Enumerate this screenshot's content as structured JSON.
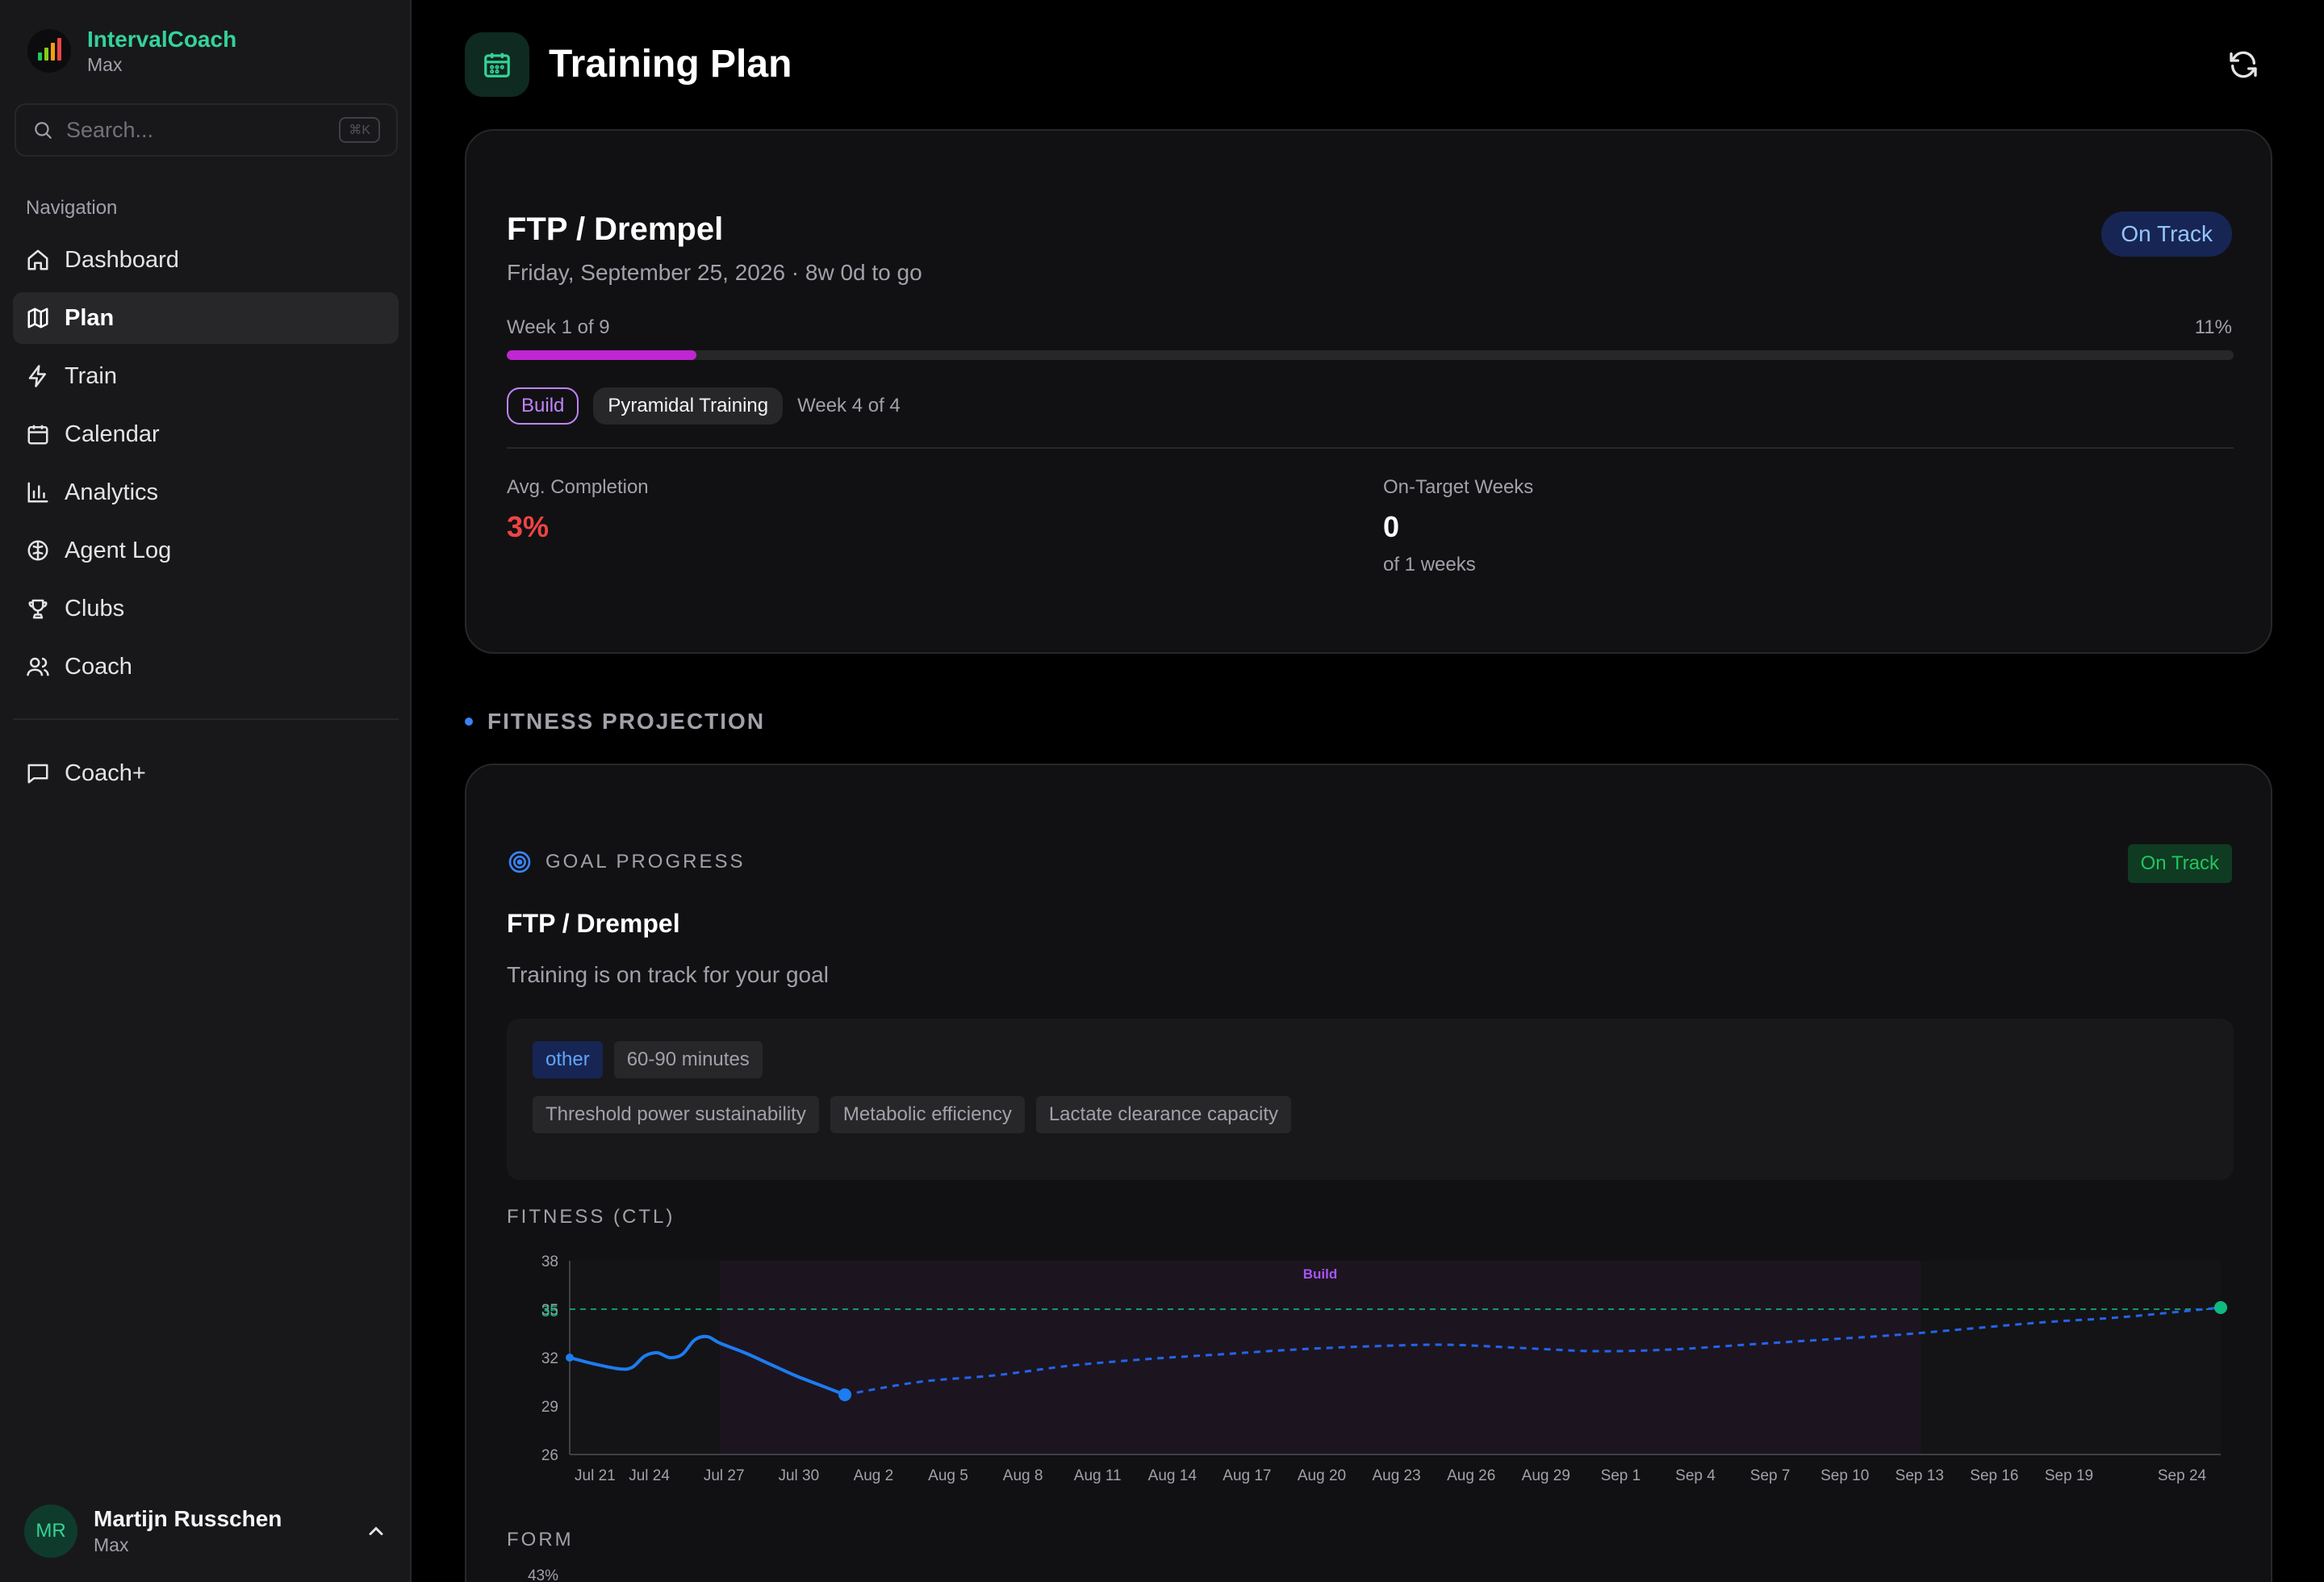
{
  "app": {
    "name": "IntervalCoach",
    "tier": "Max"
  },
  "search": {
    "placeholder": "Search...",
    "shortcut": "⌘K"
  },
  "sidebar": {
    "nav_title": "Navigation",
    "items": [
      {
        "label": "Dashboard",
        "icon": "home-icon"
      },
      {
        "label": "Plan",
        "icon": "map-icon",
        "active": true
      },
      {
        "label": "Train",
        "icon": "zap-icon"
      },
      {
        "label": "Calendar",
        "icon": "calendar-icon"
      },
      {
        "label": "Analytics",
        "icon": "bar-chart-icon"
      },
      {
        "label": "Agent Log",
        "icon": "brain-icon"
      },
      {
        "label": "Clubs",
        "icon": "trophy-icon"
      },
      {
        "label": "Coach",
        "icon": "users-icon"
      }
    ],
    "coach_plus": "Coach+"
  },
  "user": {
    "initials": "MR",
    "name": "Martijn Russchen",
    "tier": "Max"
  },
  "header": {
    "title": "Training Plan"
  },
  "goal": {
    "title": "FTP / Drempel",
    "date": "Friday, September 25, 2026 · 8w 0d to go",
    "status": "On Track",
    "week_label": "Week 1 of 9",
    "percent_label": "11%",
    "progress": 0.11,
    "phase": "Build",
    "block": "Pyramidal Training",
    "block_week": "Week 4 of 4",
    "avg_completion_label": "Avg. Completion",
    "avg_completion": "3%",
    "on_target_label": "On-Target Weeks",
    "on_target": "0",
    "on_target_sub": "of 1 weeks"
  },
  "projection": {
    "section_title": "FITNESS PROJECTION",
    "header": "GOAL PROGRESS",
    "status": "On Track",
    "title": "FTP / Drempel",
    "description": "Training is on track for your goal",
    "tags_primary": [
      "other",
      "60-90 minutes"
    ],
    "tags_secondary": [
      "Threshold power sustainability",
      "Metabolic efficiency",
      "Lactate clearance capacity"
    ],
    "fitness_label": "FITNESS (CTL)",
    "form_label": "FORM",
    "form_first_tick": "43%"
  },
  "colors": {
    "accent": "#34d399",
    "actual": "#1d7cf2",
    "projected": "#2563eb",
    "target": "#10b981",
    "build": "#a855f7"
  },
  "chart_data": {
    "type": "line",
    "title": "FITNESS (CTL)",
    "x_ticks": [
      "Jul 21",
      "Jul 24",
      "Jul 27",
      "Jul 30",
      "Aug 2",
      "Aug 5",
      "Aug 8",
      "Aug 11",
      "Aug 14",
      "Aug 17",
      "Aug 20",
      "Aug 23",
      "Aug 26",
      "Aug 29",
      "Sep 1",
      "Sep 4",
      "Sep 7",
      "Sep 10",
      "Sep 13",
      "Sep 16",
      "Sep 19",
      "Sep 24"
    ],
    "y_ticks": [
      26,
      29,
      32,
      35,
      38
    ],
    "ylim": [
      26,
      38
    ],
    "target": {
      "value": 35,
      "label": "35"
    },
    "phase_band": {
      "label": "Build",
      "from_day": 6,
      "to_day": 54
    },
    "series": [
      {
        "kind": "actual",
        "style": "solid",
        "x_days": [
          0,
          1,
          2,
          2.5,
          3,
          3.5,
          4,
          4.5,
          5,
          5.5,
          6,
          7,
          8,
          9,
          10,
          11
        ],
        "y": [
          32.0,
          31.6,
          31.3,
          31.4,
          32.1,
          32.3,
          32.0,
          32.2,
          33.1,
          33.3,
          32.9,
          32.3,
          31.6,
          30.9,
          30.3,
          29.7
        ]
      },
      {
        "kind": "projected",
        "style": "dashed",
        "x_days": [
          11,
          14,
          17,
          20,
          23,
          26,
          29,
          32,
          35,
          38,
          41,
          44,
          47,
          50,
          53,
          56,
          59,
          62,
          66
        ],
        "y": [
          29.7,
          30.5,
          30.9,
          31.5,
          31.9,
          32.2,
          32.5,
          32.7,
          32.8,
          32.6,
          32.4,
          32.5,
          32.8,
          33.1,
          33.4,
          33.8,
          34.2,
          34.5,
          35.1
        ]
      }
    ],
    "end_point": {
      "x_day": 66,
      "y": 35.1
    }
  }
}
